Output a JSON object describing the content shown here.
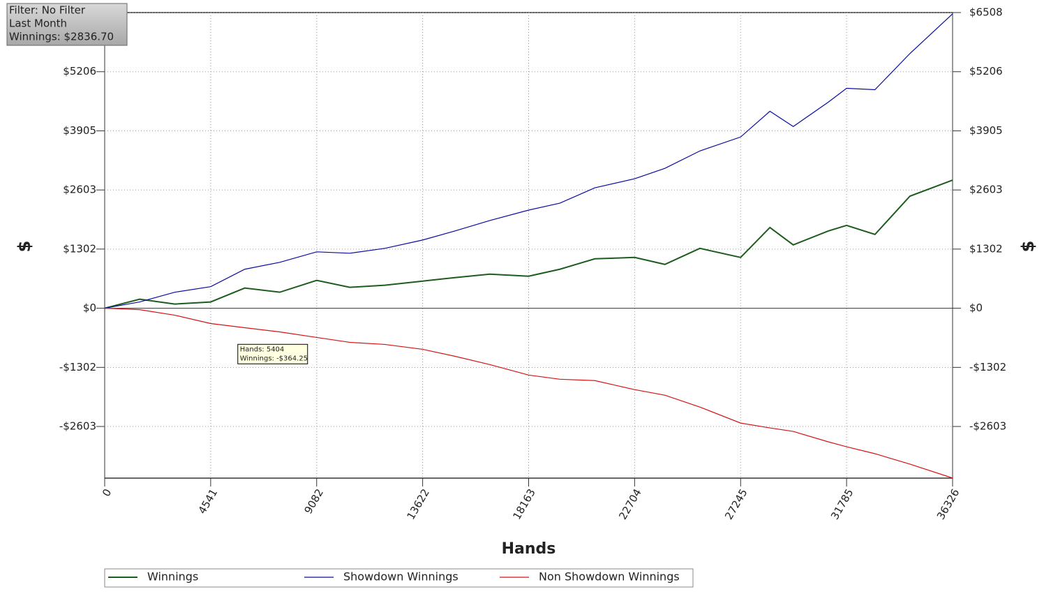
{
  "chart_data": {
    "type": "line",
    "info_box": [
      "Filter: No Filter",
      "Last Month",
      "Winnings: $2836.70"
    ],
    "xlabel": "Hands",
    "ylabel": "$",
    "y2label": "$",
    "x": [
      0,
      1500,
      3000,
      4541,
      6000,
      7500,
      9082,
      10500,
      12000,
      13622,
      15000,
      16500,
      18163,
      19500,
      21000,
      22704,
      24000,
      25500,
      27245,
      28500,
      29500,
      31000,
      31785,
      33000,
      34500,
      36326
    ],
    "series": [
      {
        "name": "Winnings",
        "color": "#1d5c1d",
        "values": [
          0,
          199,
          92,
          138,
          444,
          352,
          613,
          460,
          506,
          597,
          674,
          751,
          705,
          858,
          1088,
          1118,
          965,
          1318,
          1118,
          1777,
          1394,
          1700,
          1823,
          1624,
          2467,
          2819
        ]
      },
      {
        "name": "Showdown Winnings",
        "color": "#0a0aa0",
        "values": [
          0,
          138,
          352,
          475,
          858,
          1011,
          1241,
          1210,
          1318,
          1501,
          1700,
          1930,
          2160,
          2313,
          2650,
          2850,
          3079,
          3462,
          3769,
          4336,
          3999,
          4535,
          4841,
          4810,
          5607,
          6480
        ]
      },
      {
        "name": "Non Showdown Winnings",
        "color": "#d41414",
        "values": [
          0,
          -31,
          -153,
          -337,
          -429,
          -521,
          -643,
          -751,
          -797,
          -904,
          -1057,
          -1241,
          -1471,
          -1563,
          -1593,
          -1792,
          -1915,
          -2175,
          -2528,
          -2635,
          -2712,
          -2941,
          -3049,
          -3202,
          -3432,
          -3738
        ]
      }
    ],
    "xlim": [
      0,
      36326
    ],
    "xticks": [
      0,
      4541,
      9082,
      13622,
      18163,
      22704,
      27245,
      31785,
      36326
    ],
    "ylim": [
      -3740,
      6508
    ],
    "yticks": [
      {
        "value": -2603,
        "label": "-$2603"
      },
      {
        "value": -1302,
        "label": "-$1302"
      },
      {
        "value": 0,
        "label": "$0"
      },
      {
        "value": 1302,
        "label": "$1302"
      },
      {
        "value": 2603,
        "label": "$2603"
      },
      {
        "value": 3905,
        "label": "$3905"
      },
      {
        "value": 5206,
        "label": "$5206"
      },
      {
        "value": 6508,
        "label": "$6508"
      }
    ],
    "y2lim": [
      -3740,
      6508
    ],
    "y2ticks": [
      {
        "value": -2603,
        "label": "-$2603"
      },
      {
        "value": -1302,
        "label": "-$1302"
      },
      {
        "value": 0,
        "label": "$0"
      },
      {
        "value": 1302,
        "label": "$1302"
      },
      {
        "value": 2603,
        "label": "$2603"
      },
      {
        "value": 3905,
        "label": "$3905"
      },
      {
        "value": 5206,
        "label": "$5206"
      },
      {
        "value": 6508,
        "label": "$6508"
      }
    ],
    "grid": true,
    "legend": "bottom",
    "tooltip": {
      "x": 5404,
      "value": -364.25,
      "lines": [
        "Hands: 5404",
        "Winnings: -$364.25"
      ]
    }
  }
}
